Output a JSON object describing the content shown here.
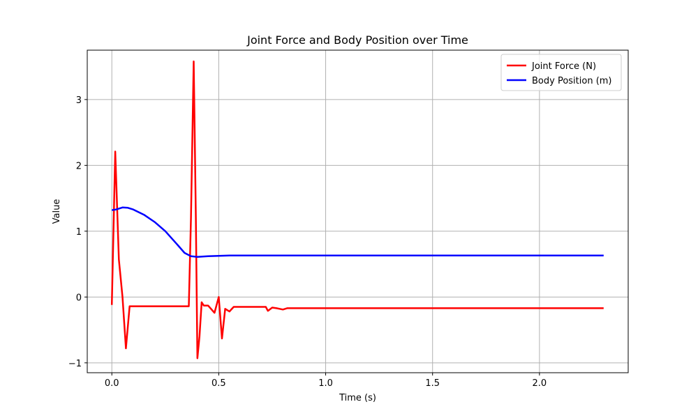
{
  "chart_data": {
    "type": "line",
    "title": "Joint Force and Body Position over Time",
    "xlabel": "Time (s)",
    "ylabel": "Value",
    "xlim": [
      -0.115,
      2.415
    ],
    "ylim": [
      -1.15,
      3.75
    ],
    "xticks": [
      0.0,
      0.5,
      1.0,
      1.5,
      2.0
    ],
    "xtick_labels": [
      "0.0",
      "0.5",
      "1.0",
      "1.5",
      "2.0"
    ],
    "yticks": [
      -1,
      0,
      1,
      2,
      3
    ],
    "ytick_labels": [
      "−1",
      "0",
      "1",
      "2",
      "3"
    ],
    "grid": true,
    "legend_position": "top-right",
    "series": [
      {
        "name": "Joint Force (N)",
        "color": "#ff0000",
        "x": [
          0.0,
          0.016,
          0.033,
          0.05,
          0.066,
          0.083,
          0.1,
          0.2,
          0.3,
          0.36,
          0.37,
          0.383,
          0.393,
          0.4,
          0.41,
          0.42,
          0.43,
          0.45,
          0.48,
          0.5,
          0.515,
          0.53,
          0.55,
          0.57,
          0.6,
          0.65,
          0.7,
          0.72,
          0.73,
          0.75,
          0.77,
          0.8,
          0.82,
          0.85,
          0.9,
          1.0,
          1.5,
          2.0,
          2.3
        ],
        "y": [
          -0.12,
          2.21,
          0.57,
          0.0,
          -0.78,
          -0.14,
          -0.14,
          -0.14,
          -0.14,
          -0.14,
          1.2,
          3.58,
          1.2,
          -0.93,
          -0.6,
          -0.08,
          -0.13,
          -0.13,
          -0.24,
          0.0,
          -0.63,
          -0.18,
          -0.22,
          -0.15,
          -0.15,
          -0.15,
          -0.15,
          -0.15,
          -0.21,
          -0.16,
          -0.17,
          -0.19,
          -0.17,
          -0.17,
          -0.17,
          -0.17,
          -0.17,
          -0.17,
          -0.17
        ]
      },
      {
        "name": "Body Position (m)",
        "color": "#0000ff",
        "x": [
          0.0,
          0.02,
          0.05,
          0.075,
          0.1,
          0.15,
          0.2,
          0.25,
          0.3,
          0.34,
          0.37,
          0.4,
          0.45,
          0.5,
          0.55,
          0.7,
          1.0,
          1.5,
          2.0,
          2.3
        ],
        "y": [
          1.32,
          1.33,
          1.36,
          1.355,
          1.33,
          1.25,
          1.14,
          1.0,
          0.82,
          0.67,
          0.62,
          0.61,
          0.62,
          0.625,
          0.63,
          0.63,
          0.63,
          0.63,
          0.63,
          0.63
        ]
      }
    ]
  }
}
